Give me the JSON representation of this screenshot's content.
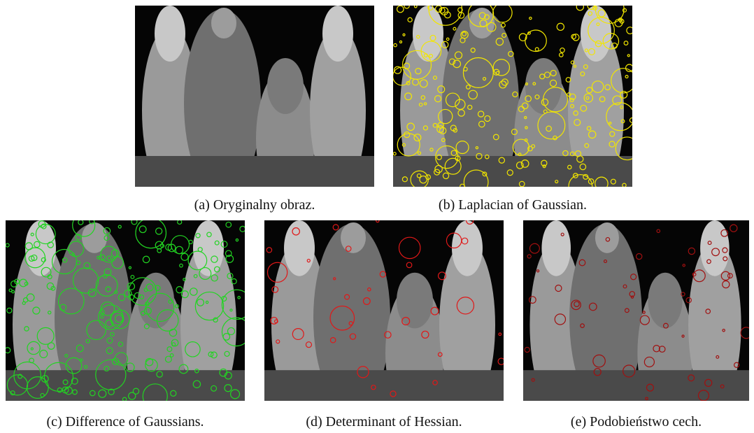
{
  "figure": {
    "panels": [
      {
        "caption": "(a) Oryginalny obraz."
      },
      {
        "caption": "(b) Laplacian of Gaussian."
      },
      {
        "caption": "(c) Difference of Gaussians."
      },
      {
        "caption": "(d) Determinant of Hessian."
      },
      {
        "caption": "(e) Podobieństwo cech."
      }
    ]
  }
}
